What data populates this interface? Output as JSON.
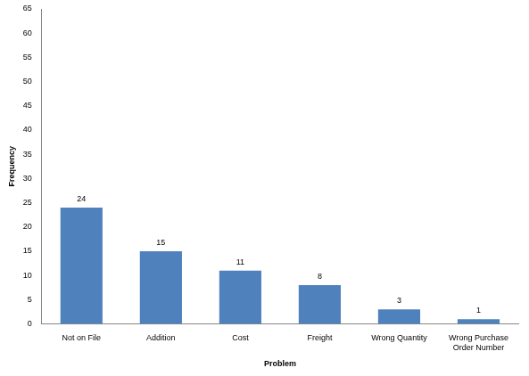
{
  "chart_data": {
    "type": "bar",
    "x_label": "Problem",
    "y_label": "Frequency",
    "categories": [
      "Not on File",
      "Addition",
      "Cost",
      "Freight",
      "Wrong Quantity",
      "Wrong Purchase Order Number"
    ],
    "values": [
      24,
      15,
      11,
      8,
      3,
      1
    ],
    "color": "#4f81bd",
    "ylim": [
      0,
      65
    ],
    "yticks": [
      0,
      5,
      10,
      15,
      20,
      25,
      30,
      35,
      40,
      45,
      50,
      55,
      60,
      65
    ],
    "grid": false,
    "data_labels": true
  }
}
